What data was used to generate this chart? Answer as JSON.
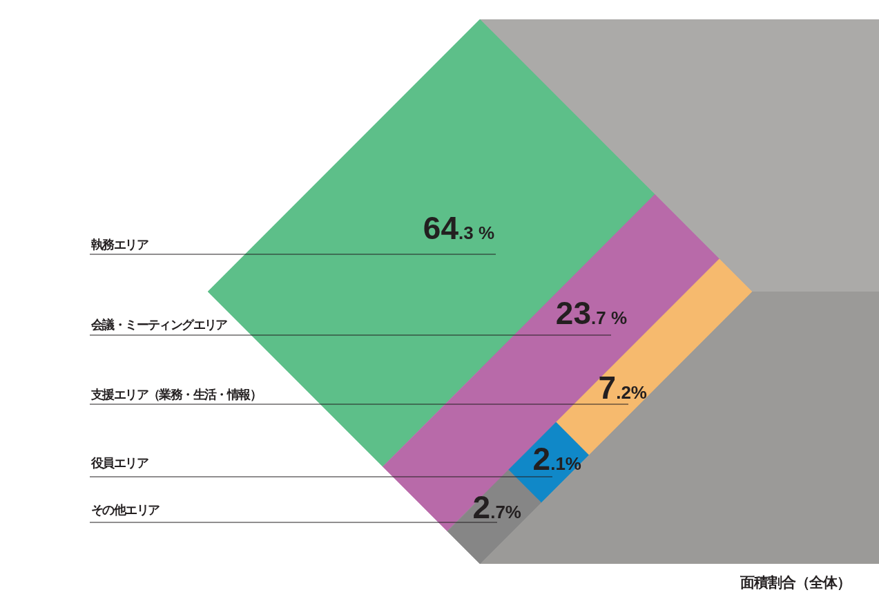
{
  "chart_data": {
    "type": "other",
    "title": "面積割合（全体）",
    "categories": [
      "執務エリア",
      "会議・ミーティングエリア",
      "支援エリア（業務・生活・情報）",
      "役員エリア",
      "その他エリア"
    ],
    "values": [
      64.3,
      23.7,
      7.2,
      2.1,
      2.7
    ],
    "colors": [
      "#5dbf89",
      "#b86aa9",
      "#f6ba6e",
      "#1088c8",
      "#868686"
    ],
    "value_labels": [
      "64.3 %",
      "23.7 %",
      "7.2%",
      "2.1%",
      "2.7%"
    ]
  }
}
